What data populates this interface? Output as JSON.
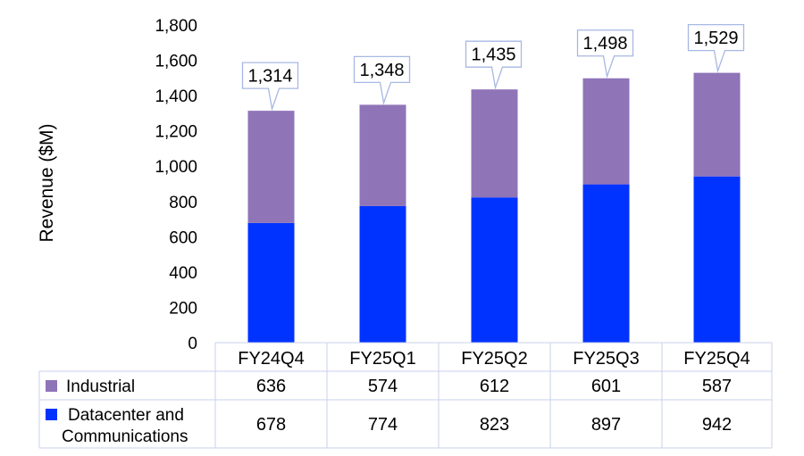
{
  "chart_data": {
    "type": "bar",
    "stacked": true,
    "ylabel": "Revenue ($M)",
    "ylim": [
      0,
      1800
    ],
    "yticks": [
      "0",
      "200",
      "400",
      "600",
      "800",
      "1,000",
      "1,200",
      "1,400",
      "1,600",
      "1,800"
    ],
    "categories": [
      "FY24Q4",
      "FY25Q1",
      "FY25Q2",
      "FY25Q3",
      "FY25Q4"
    ],
    "series": [
      {
        "name": "Datacenter and Communications",
        "color": "#0033ff",
        "values": [
          678,
          774,
          823,
          897,
          942
        ],
        "labels": [
          "678",
          "774",
          "823",
          "897",
          "942"
        ]
      },
      {
        "name": "Industrial",
        "color": "#8f74b8",
        "values": [
          636,
          574,
          612,
          601,
          587
        ],
        "labels": [
          "636",
          "574",
          "612",
          "601",
          "587"
        ]
      }
    ],
    "totals": [
      "1,314",
      "1,348",
      "1,435",
      "1,498",
      "1,529"
    ],
    "table_rows": [
      {
        "label": "Industrial",
        "color": "#8f74b8",
        "series_index": 1
      },
      {
        "label_lines": [
          "Datacenter and",
          "Communications"
        ],
        "color": "#0033ff",
        "series_index": 0
      }
    ],
    "grid": false,
    "legend": "data-table"
  }
}
